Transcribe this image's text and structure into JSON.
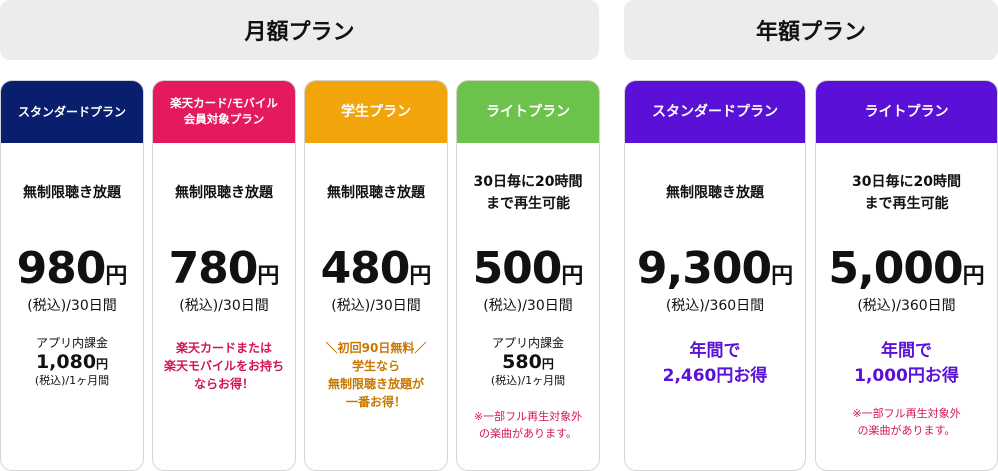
{
  "groups": {
    "monthly_title": "月額プラン",
    "annual_title": "年額プラン"
  },
  "colors": {
    "standard_monthly": "#0a1e6e",
    "rakuten_card": "#e5195f",
    "student": "#f2a50a",
    "light_monthly": "#6cc24a",
    "annual": "#5a10d6",
    "pink_text": "#d4145a",
    "orange_text": "#c77800",
    "purple_text": "#5a10d6"
  },
  "plans": {
    "standard": {
      "name": "スタンダードプラン",
      "feature": "無制限聴き放題",
      "price": "980",
      "yen": "円",
      "price_note": "(税込)/30日間",
      "inapp_label": "アプリ内課金",
      "inapp_price": "1,080",
      "inapp_yen": "円",
      "inapp_note": "(税込)/1ヶ月間"
    },
    "rakuten": {
      "name": "楽天カード/モバイル\n会員対象プラン",
      "feature": "無制限聴き放題",
      "price": "780",
      "yen": "円",
      "price_note": "(税込)/30日間",
      "promo": "楽天カードまたは\n楽天モバイルをお持ち\nならお得！"
    },
    "student": {
      "name": "学生プラン",
      "feature": "無制限聴き放題",
      "price": "480",
      "yen": "円",
      "price_note": "(税込)/30日間",
      "promo": "＼初回90日無料／\n学生なら\n無制限聴き放題が\n一番お得！"
    },
    "light": {
      "name": "ライトプラン",
      "feature": "30日毎に20時間\nまで再生可能",
      "price": "500",
      "yen": "円",
      "price_note": "(税込)/30日間",
      "inapp_label": "アプリ内課金",
      "inapp_price": "580",
      "inapp_yen": "円",
      "inapp_note": "(税込)/1ヶ月間",
      "footnote": "※一部フル再生対象外\nの楽曲があります。"
    },
    "annual_standard": {
      "name": "スタンダードプラン",
      "feature": "無制限聴き放題",
      "price": "9,300",
      "yen": "円",
      "price_note": "(税込)/360日間",
      "promo": "年間で\n2,460円お得"
    },
    "annual_light": {
      "name": "ライトプラン",
      "feature": "30日毎に20時間\nまで再生可能",
      "price": "5,000",
      "yen": "円",
      "price_note": "(税込)/360日間",
      "promo": "年間で\n1,000円お得",
      "footnote": "※一部フル再生対象外\nの楽曲があります。"
    }
  }
}
